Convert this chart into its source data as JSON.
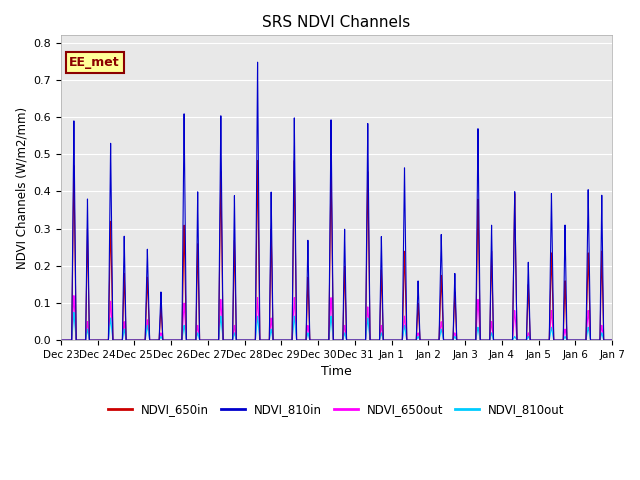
{
  "title": "SRS NDVI Channels",
  "xlabel": "Time",
  "ylabel": "NDVI Channels (W/m2/mm)",
  "ylim": [
    0.0,
    0.82
  ],
  "yticks": [
    0.0,
    0.1,
    0.2,
    0.3,
    0.4,
    0.5,
    0.6,
    0.7,
    0.8
  ],
  "background_color": "#e8e8e8",
  "annotation_text": "EE_met",
  "annotation_bg": "#ffff99",
  "annotation_border": "#8b0000",
  "legend_labels": [
    "NDVI_650in",
    "NDVI_810in",
    "NDVI_650out",
    "NDVI_810out"
  ],
  "legend_colors": [
    "#cc0000",
    "#0000cc",
    "#ff00ff",
    "#00ccff"
  ],
  "series_colors": {
    "NDVI_650in": "#cc0000",
    "NDVI_810in": "#0000cc",
    "NDVI_650out": "#ff00ff",
    "NDVI_810out": "#00ccff"
  },
  "day_labels": [
    "Dec 23",
    "Dec 24",
    "Dec 25",
    "Dec 26",
    "Dec 27",
    "Dec 28",
    "Dec 29",
    "Dec 30",
    "Dec 31",
    "Jan 1",
    "Jan 2",
    "Jan 3",
    "Jan 4",
    "Jan 5",
    "Jan 6",
    "Jan 7"
  ],
  "peaks": {
    "NDVI_810in": [
      0.59,
      0.53,
      0.245,
      0.61,
      0.605,
      0.75,
      0.6,
      0.595,
      0.585,
      0.465,
      0.285,
      0.57,
      0.4,
      0.395,
      0.405
    ],
    "NDVI_650in": [
      0.47,
      0.32,
      0.17,
      0.31,
      0.455,
      0.485,
      0.485,
      0.47,
      0.455,
      0.24,
      0.175,
      0.38,
      0.395,
      0.235,
      0.235
    ],
    "NDVI_650out": [
      0.12,
      0.105,
      0.055,
      0.1,
      0.11,
      0.115,
      0.115,
      0.115,
      0.09,
      0.065,
      0.05,
      0.11,
      0.08,
      0.08,
      0.08
    ],
    "NDVI_810out": [
      0.075,
      0.06,
      0.04,
      0.04,
      0.065,
      0.065,
      0.065,
      0.065,
      0.06,
      0.04,
      0.03,
      0.035,
      0.01,
      0.035,
      0.035
    ]
  },
  "peaks2": {
    "NDVI_810in": [
      0.38,
      0.28,
      0.13,
      0.4,
      0.39,
      0.4,
      0.27,
      0.3,
      0.28,
      0.16,
      0.18,
      0.31,
      0.21,
      0.31,
      0.39
    ],
    "NDVI_650in": [
      0.3,
      0.18,
      0.09,
      0.26,
      0.27,
      0.3,
      0.17,
      0.2,
      0.19,
      0.1,
      0.13,
      0.24,
      0.15,
      0.16,
      0.24
    ],
    "NDVI_650out": [
      0.05,
      0.05,
      0.02,
      0.04,
      0.04,
      0.06,
      0.04,
      0.04,
      0.04,
      0.02,
      0.02,
      0.05,
      0.02,
      0.03,
      0.04
    ],
    "NDVI_810out": [
      0.03,
      0.03,
      0.01,
      0.02,
      0.02,
      0.03,
      0.02,
      0.02,
      0.02,
      0.01,
      0.01,
      0.02,
      0.01,
      0.01,
      0.02
    ]
  }
}
